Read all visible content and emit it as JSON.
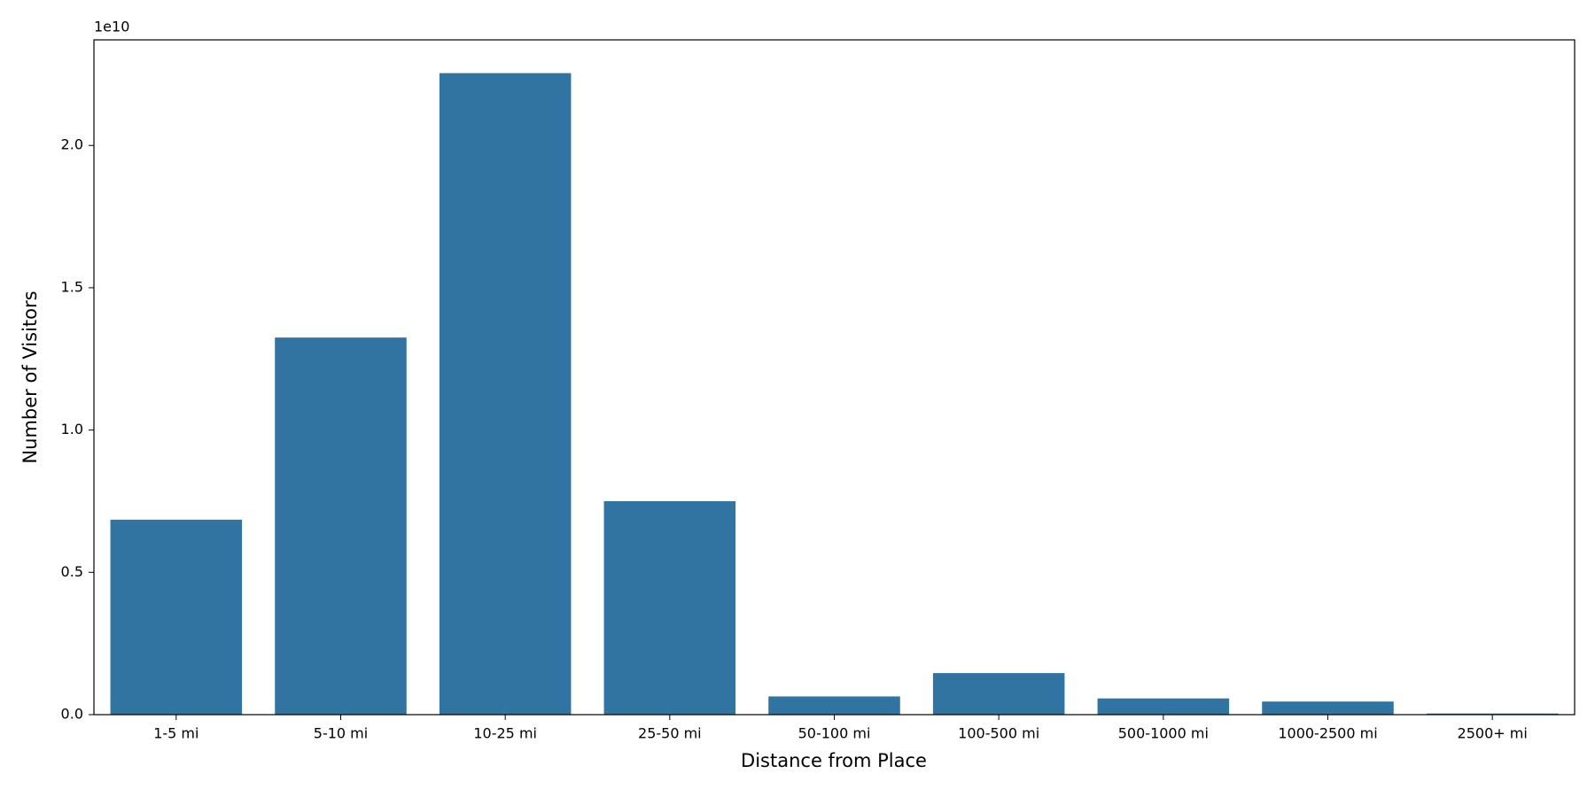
{
  "chart_data": {
    "type": "bar",
    "x_label": "Distance from Place",
    "y_label": "Number of Visitors",
    "y_offset_label": "1e10",
    "categories": [
      "1-5 mi",
      "5-10 mi",
      "10-25 mi",
      "25-50 mi",
      "50-100 mi",
      "100-500 mi",
      "500-1000 mi",
      "1000-2500 mi",
      "2500+ mi"
    ],
    "values": [
      6850000000,
      13250000000,
      22540000000,
      7500000000,
      640000000,
      1460000000,
      570000000,
      460000000,
      40000000
    ],
    "color": "#3274a1",
    "ylim": [
      0,
      23710000000
    ],
    "yticks": [
      {
        "value": 0,
        "label": "0.0"
      },
      {
        "value": 5000000000,
        "label": "0.5"
      },
      {
        "value": 10000000000,
        "label": "1.0"
      },
      {
        "value": 15000000000,
        "label": "1.5"
      },
      {
        "value": 20000000000,
        "label": "2.0"
      }
    ],
    "grid": false
  }
}
